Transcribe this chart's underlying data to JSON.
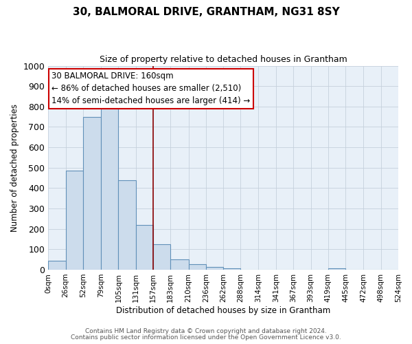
{
  "title": "30, BALMORAL DRIVE, GRANTHAM, NG31 8SY",
  "subtitle": "Size of property relative to detached houses in Grantham",
  "xlabel": "Distribution of detached houses by size in Grantham",
  "ylabel": "Number of detached properties",
  "bar_color": "#ccdcec",
  "bar_edge_color": "#6090b8",
  "axes_bg_color": "#e8f0f8",
  "fig_bg_color": "#ffffff",
  "grid_color": "#c5d0dc",
  "bin_edges": [
    0,
    26,
    52,
    79,
    105,
    131,
    157,
    183,
    210,
    236,
    262,
    288,
    314,
    341,
    367,
    393,
    419,
    445,
    472,
    498,
    524
  ],
  "bin_labels": [
    "0sqm",
    "26sqm",
    "52sqm",
    "79sqm",
    "105sqm",
    "131sqm",
    "157sqm",
    "183sqm",
    "210sqm",
    "236sqm",
    "262sqm",
    "288sqm",
    "314sqm",
    "341sqm",
    "367sqm",
    "393sqm",
    "419sqm",
    "445sqm",
    "472sqm",
    "498sqm",
    "524sqm"
  ],
  "counts": [
    44,
    485,
    750,
    795,
    440,
    220,
    125,
    52,
    28,
    15,
    8,
    0,
    0,
    0,
    0,
    0,
    7,
    0,
    0,
    0
  ],
  "vline_x": 157,
  "vline_color": "#8b0000",
  "ylim": [
    0,
    1000
  ],
  "yticks": [
    0,
    100,
    200,
    300,
    400,
    500,
    600,
    700,
    800,
    900,
    1000
  ],
  "annotation_title": "30 BALMORAL DRIVE: 160sqm",
  "annotation_line1": "← 86% of detached houses are smaller (2,510)",
  "annotation_line2": "14% of semi-detached houses are larger (414) →",
  "ann_box_facecolor": "#ffffff",
  "ann_box_edgecolor": "#cc0000",
  "footer1": "Contains HM Land Registry data © Crown copyright and database right 2024.",
  "footer2": "Contains public sector information licensed under the Open Government Licence v3.0."
}
